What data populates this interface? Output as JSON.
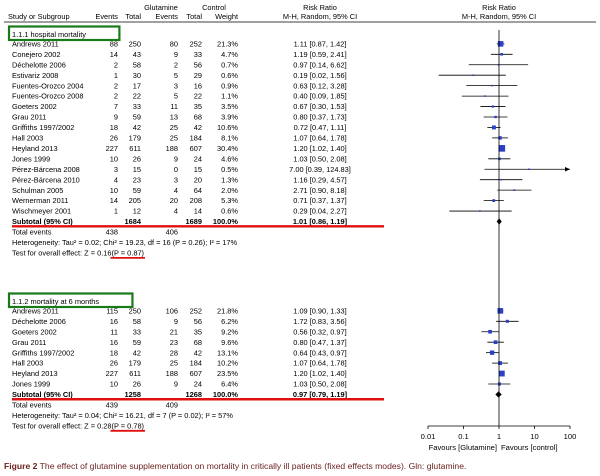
{
  "header": {
    "study_label": "Study or Subgroup",
    "glutamine": "Glutamine",
    "control": "Control",
    "events": "Events",
    "total": "Total",
    "weight": "Weight",
    "risk_ratio": "Risk Ratio",
    "method": "M-H, Random, 95% CI"
  },
  "caption": {
    "label": "Figure 2",
    "text": "The effect of glutamine supplementation on mortality in critically ill patients (fixed effects modes). Gln: glutamine."
  },
  "colors": {
    "box": "#2b3fc8",
    "green": "#1a7a1a",
    "red": "#e01010",
    "caption": "#6b2320"
  },
  "chart_data": {
    "type": "forest",
    "xscale": "log",
    "xlim": [
      0.01,
      100
    ],
    "xticks": [
      {
        "value": 0.01,
        "label": "0.01"
      },
      {
        "value": 0.1,
        "label": "0.1"
      },
      {
        "value": 1,
        "label": "1"
      },
      {
        "value": 10,
        "label": "10"
      },
      {
        "value": 100,
        "label": "100"
      }
    ],
    "favours_left": "Favours [Glutamine]",
    "favours_right": "Favours [control]",
    "subgroups": [
      {
        "title": "1.1.1 hospital mortality",
        "studies": [
          {
            "name": "Andrews 2011",
            "ge": "88",
            "gt": "250",
            "ce": "80",
            "ct": "252",
            "w": "21.3%",
            "ci": "1.11 [0.87, 1.42]",
            "rr": 1.11,
            "lo": 0.87,
            "hi": 1.42,
            "wv": 21.3
          },
          {
            "name": "Conejero 2002",
            "ge": "14",
            "gt": "43",
            "ce": "9",
            "ct": "33",
            "w": "4.7%",
            "ci": "1.19 [0.59, 2.41]",
            "rr": 1.19,
            "lo": 0.59,
            "hi": 2.41,
            "wv": 4.7
          },
          {
            "name": "Déchelotte 2006",
            "ge": "2",
            "gt": "58",
            "ce": "2",
            "ct": "56",
            "w": "0.7%",
            "ci": "0.97 [0.14, 6.62]",
            "rr": 0.97,
            "lo": 0.14,
            "hi": 6.62,
            "wv": 0.7
          },
          {
            "name": "Estivariz 2008",
            "ge": "1",
            "gt": "30",
            "ce": "5",
            "ct": "29",
            "w": "0.6%",
            "ci": "0.19 [0.02, 1.56]",
            "rr": 0.19,
            "lo": 0.02,
            "hi": 1.56,
            "wv": 0.6
          },
          {
            "name": "Fuentes-Orozco 2004",
            "ge": "2",
            "gt": "17",
            "ce": "3",
            "ct": "16",
            "w": "0.9%",
            "ci": "0.63 [0.12, 3.28]",
            "rr": 0.63,
            "lo": 0.12,
            "hi": 3.28,
            "wv": 0.9
          },
          {
            "name": "Fuentes-Orozco 2008",
            "ge": "2",
            "gt": "22",
            "ce": "5",
            "ct": "22",
            "w": "1.1%",
            "ci": "0.40 [0.09, 1.85]",
            "rr": 0.4,
            "lo": 0.09,
            "hi": 1.85,
            "wv": 1.1
          },
          {
            "name": "Goeters 2002",
            "ge": "7",
            "gt": "33",
            "ce": "11",
            "ct": "35",
            "w": "3.5%",
            "ci": "0.67 [0.30, 1.53]",
            "rr": 0.67,
            "lo": 0.3,
            "hi": 1.53,
            "wv": 3.5
          },
          {
            "name": "Grau 2011",
            "ge": "9",
            "gt": "59",
            "ce": "13",
            "ct": "68",
            "w": "3.9%",
            "ci": "0.80 [0.37, 1.73]",
            "rr": 0.8,
            "lo": 0.37,
            "hi": 1.73,
            "wv": 3.9
          },
          {
            "name": "Griffiths 1997/2002",
            "ge": "18",
            "gt": "42",
            "ce": "25",
            "ct": "42",
            "w": "10.6%",
            "ci": "0.72 [0.47, 1.11]",
            "rr": 0.72,
            "lo": 0.47,
            "hi": 1.11,
            "wv": 10.6
          },
          {
            "name": "Hall 2003",
            "ge": "26",
            "gt": "179",
            "ce": "25",
            "ct": "184",
            "w": "8.1%",
            "ci": "1.07 [0.64, 1.78]",
            "rr": 1.07,
            "lo": 0.64,
            "hi": 1.78,
            "wv": 8.1
          },
          {
            "name": "Heyland 2013",
            "ge": "227",
            "gt": "611",
            "ce": "188",
            "ct": "607",
            "w": "30.4%",
            "ci": "1.20 [1.02, 1.40]",
            "rr": 1.2,
            "lo": 1.02,
            "hi": 1.4,
            "wv": 30.4
          },
          {
            "name": "Jones 1999",
            "ge": "10",
            "gt": "26",
            "ce": "9",
            "ct": "24",
            "w": "4.6%",
            "ci": "1.03 [0.50, 2.08]",
            "rr": 1.03,
            "lo": 0.5,
            "hi": 2.08,
            "wv": 4.6
          },
          {
            "name": "Pérez-Bárcena 2008",
            "ge": "3",
            "gt": "15",
            "ce": "0",
            "ct": "15",
            "w": "0.5%",
            "ci": "7.00 [0.39, 124.83]",
            "rr": 7.0,
            "lo": 0.39,
            "hi": 124.83,
            "wv": 0.5
          },
          {
            "name": "Pérez-Bárcena 2010",
            "ge": "4",
            "gt": "23",
            "ce": "3",
            "ct": "20",
            "w": "1.3%",
            "ci": "1.16 [0.29, 4.57]",
            "rr": 1.16,
            "lo": 0.29,
            "hi": 4.57,
            "wv": 1.3
          },
          {
            "name": "Schulman 2005",
            "ge": "10",
            "gt": "59",
            "ce": "4",
            "ct": "64",
            "w": "2.0%",
            "ci": "2.71 [0.90, 8.18]",
            "rr": 2.71,
            "lo": 0.9,
            "hi": 8.18,
            "wv": 2.0
          },
          {
            "name": "Wernerman 2011",
            "ge": "14",
            "gt": "205",
            "ce": "20",
            "ct": "208",
            "w": "5.3%",
            "ci": "0.71 [0.37, 1.37]",
            "rr": 0.71,
            "lo": 0.37,
            "hi": 1.37,
            "wv": 5.3
          },
          {
            "name": "Wischmeyer 2001",
            "ge": "1",
            "gt": "12",
            "ce": "4",
            "ct": "14",
            "w": "0.6%",
            "ci": "0.29 [0.04, 2.27]",
            "rr": 0.29,
            "lo": 0.04,
            "hi": 2.27,
            "wv": 0.6
          }
        ],
        "subtotal": {
          "label": "Subtotal (95% CI)",
          "gt": "1684",
          "ct": "1689",
          "w": "100.0%",
          "ci": "1.01 [0.86, 1.19]",
          "rr": 1.01,
          "lo": 0.86,
          "hi": 1.19
        },
        "total_events": {
          "label": "Total events",
          "g": "438",
          "c": "406"
        },
        "heterogeneity": "Heterogeneity: Tau² = 0.02; Chi² = 19.23, df = 16 (P = 0.26); I² = 17%",
        "overall_prefix": "Test for overall effect: Z = 0.16 ",
        "overall_p": "(P = 0.87)"
      },
      {
        "title": "1.1.2 mortality at 6 months",
        "studies": [
          {
            "name": "Andrews 2011",
            "ge": "115",
            "gt": "250",
            "ce": "106",
            "ct": "252",
            "w": "21.8%",
            "ci": "1.09 [0.90, 1.33]",
            "rr": 1.09,
            "lo": 0.9,
            "hi": 1.33,
            "wv": 21.8
          },
          {
            "name": "Déchelotte 2006",
            "ge": "16",
            "gt": "58",
            "ce": "9",
            "ct": "56",
            "w": "6.2%",
            "ci": "1.72 [0.83, 3.56]",
            "rr": 1.72,
            "lo": 0.83,
            "hi": 3.56,
            "wv": 6.2
          },
          {
            "name": "Goeters 2002",
            "ge": "11",
            "gt": "33",
            "ce": "21",
            "ct": "35",
            "w": "9.2%",
            "ci": "0.56 [0.32, 0.97]",
            "rr": 0.56,
            "lo": 0.32,
            "hi": 0.97,
            "wv": 9.2
          },
          {
            "name": "Grau 2011",
            "ge": "16",
            "gt": "59",
            "ce": "23",
            "ct": "68",
            "w": "9.6%",
            "ci": "0.80 [0.47, 1.37]",
            "rr": 0.8,
            "lo": 0.47,
            "hi": 1.37,
            "wv": 9.6
          },
          {
            "name": "Griffiths 1997/2002",
            "ge": "18",
            "gt": "42",
            "ce": "28",
            "ct": "42",
            "w": "13.1%",
            "ci": "0.64 [0.43, 0.97]",
            "rr": 0.64,
            "lo": 0.43,
            "hi": 0.97,
            "wv": 13.1
          },
          {
            "name": "Hall 2003",
            "ge": "26",
            "gt": "179",
            "ce": "25",
            "ct": "184",
            "w": "10.2%",
            "ci": "1.07 [0.64, 1.78]",
            "rr": 1.07,
            "lo": 0.64,
            "hi": 1.78,
            "wv": 10.2
          },
          {
            "name": "Heyland 2013",
            "ge": "227",
            "gt": "611",
            "ce": "188",
            "ct": "607",
            "w": "23.5%",
            "ci": "1.20 [1.02, 1.40]",
            "rr": 1.2,
            "lo": 1.02,
            "hi": 1.4,
            "wv": 23.5
          },
          {
            "name": "Jones 1999",
            "ge": "10",
            "gt": "26",
            "ce": "9",
            "ct": "24",
            "w": "6.4%",
            "ci": "1.03 [0.50, 2.08]",
            "rr": 1.03,
            "lo": 0.5,
            "hi": 2.08,
            "wv": 6.4
          }
        ],
        "subtotal": {
          "label": "Subtotal (95% CI)",
          "gt": "1258",
          "ct": "1268",
          "w": "100.0%",
          "ci": "0.97 [0.79, 1.19]",
          "rr": 0.97,
          "lo": 0.79,
          "hi": 1.19
        },
        "total_events": {
          "label": "Total events",
          "g": "439",
          "c": "409"
        },
        "heterogeneity": "Heterogeneity: Tau² = 0.04; Chi² = 16.21, df = 7 (P = 0.02); I² = 57%",
        "overall_prefix": "Test for overall effect: Z = 0.28 ",
        "overall_p": "(P = 0.78)"
      }
    ]
  }
}
